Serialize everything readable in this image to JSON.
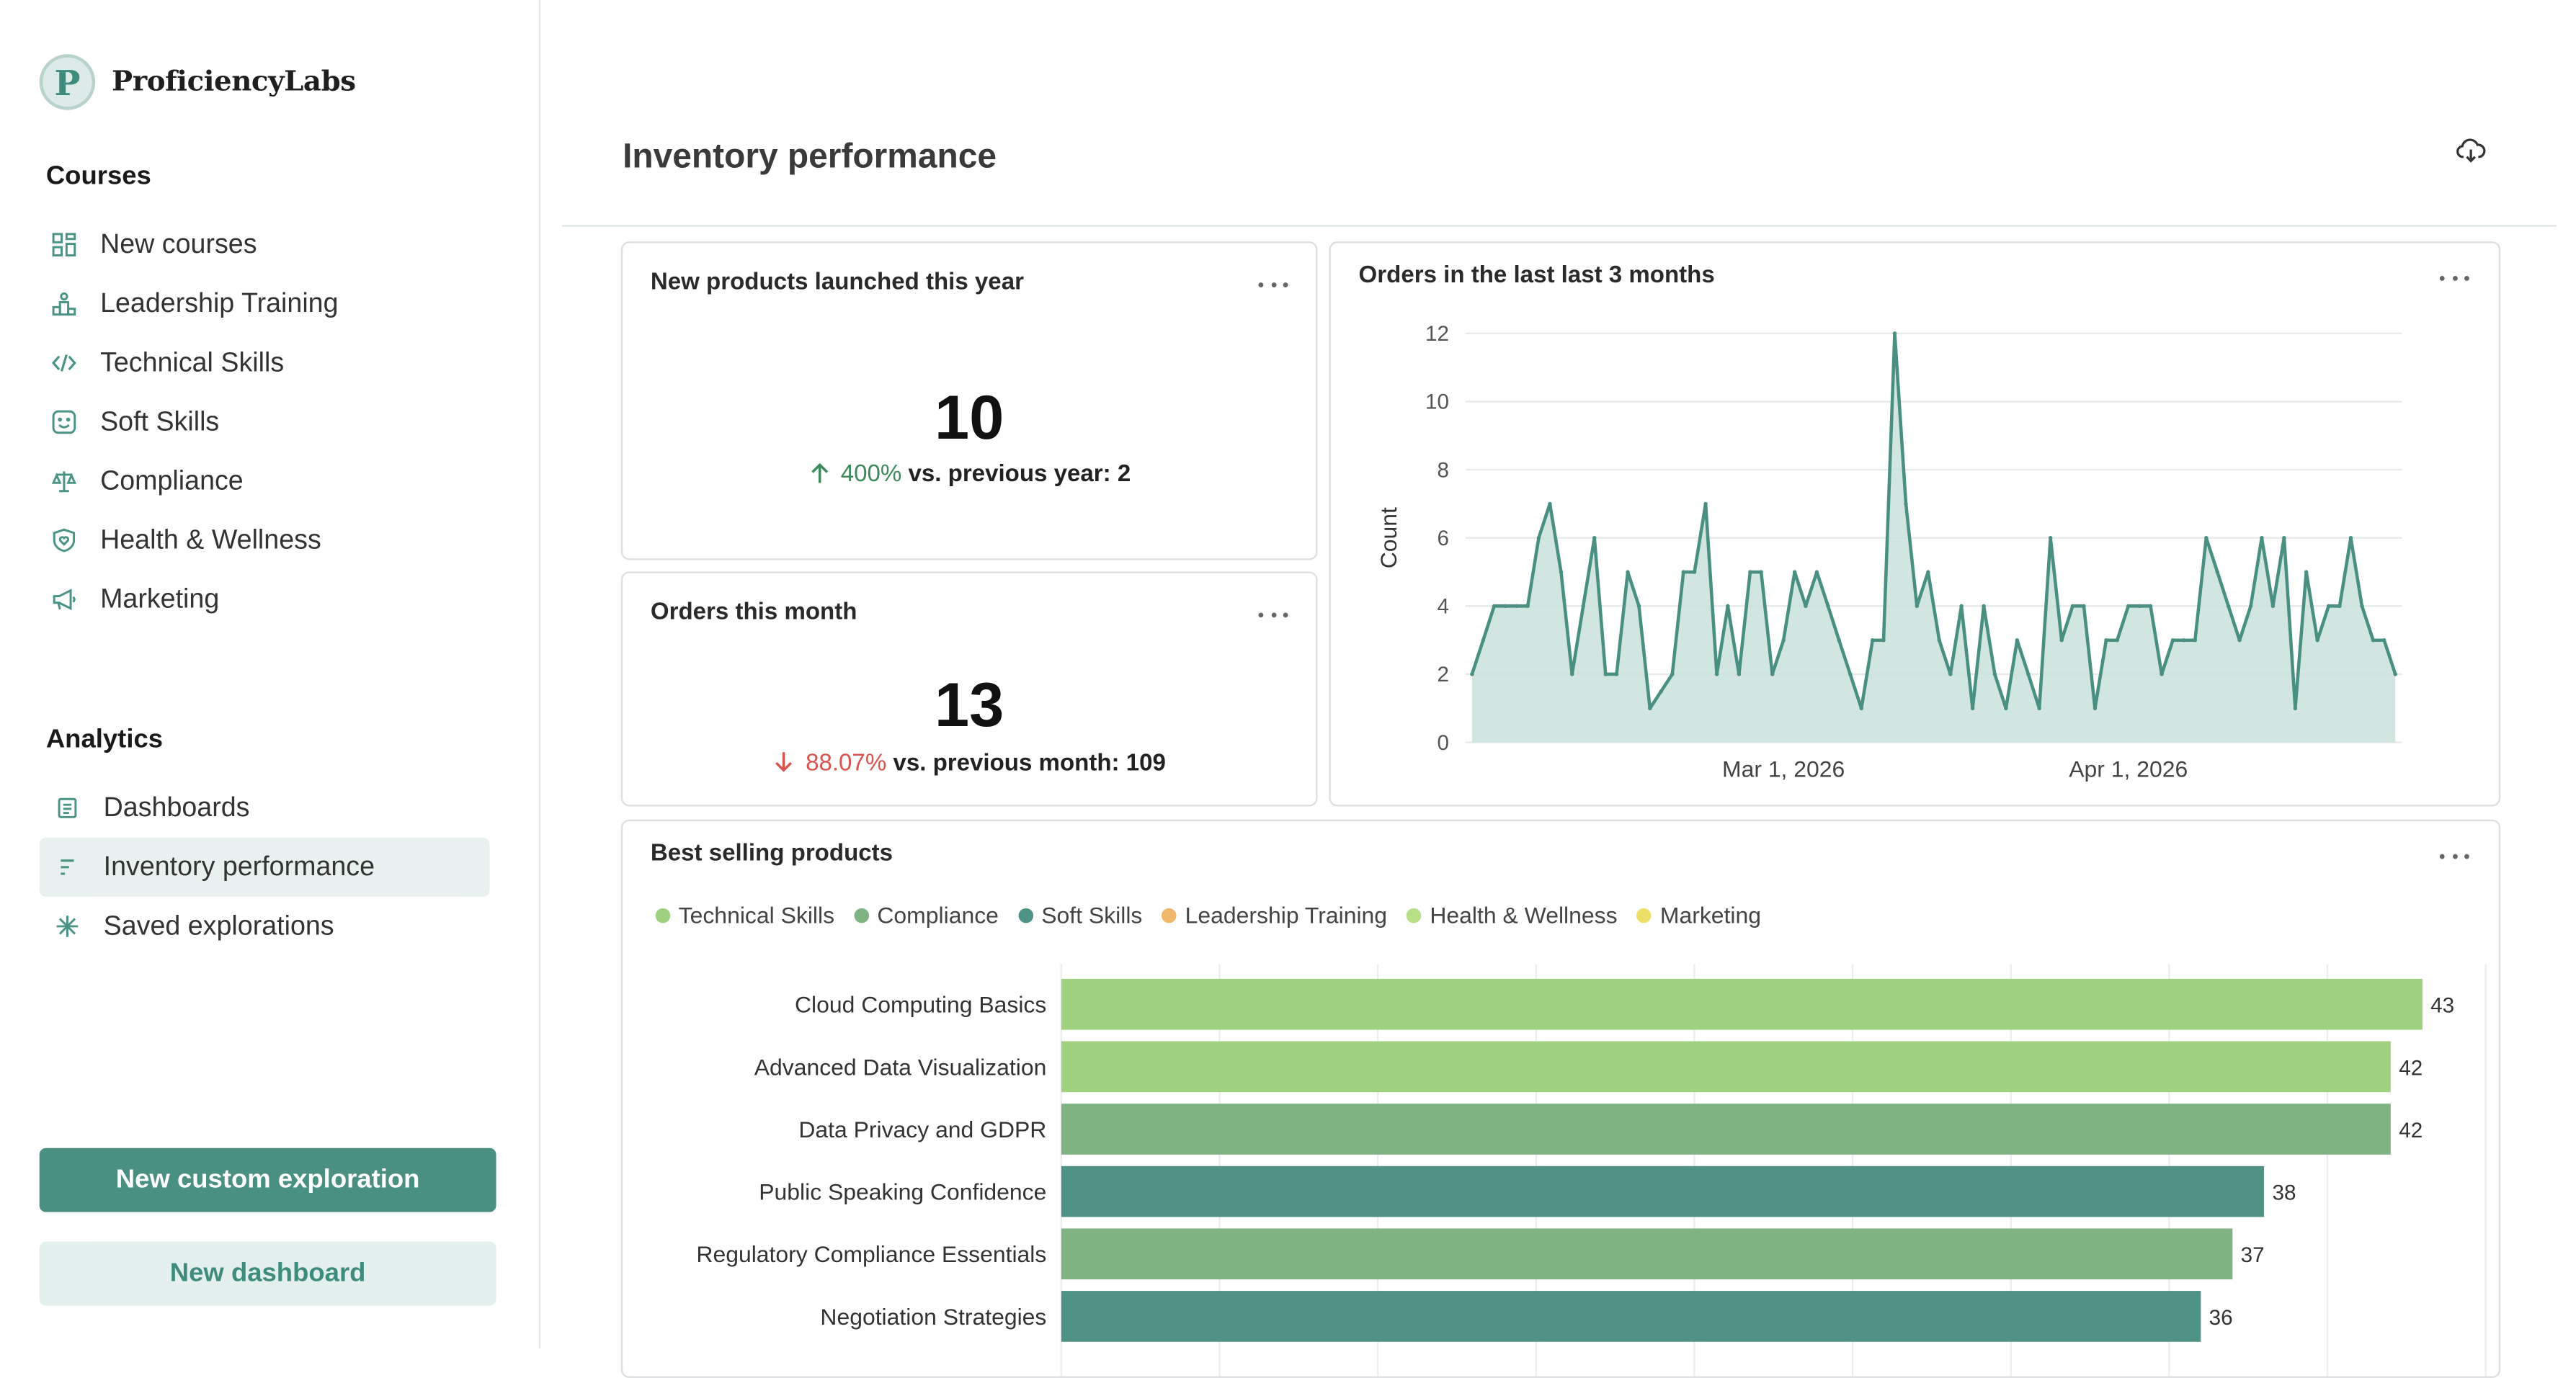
{
  "brand": {
    "logo_letter": "P",
    "name": "ProficiencyLabs"
  },
  "sidebar": {
    "courses_title": "Courses",
    "courses": [
      {
        "label": "New courses",
        "icon": "grid-icon"
      },
      {
        "label": "Leadership Training",
        "icon": "podium-icon"
      },
      {
        "label": "Technical Skills",
        "icon": "code-icon"
      },
      {
        "label": "Soft Skills",
        "icon": "smile-icon"
      },
      {
        "label": "Compliance",
        "icon": "scale-icon"
      },
      {
        "label": "Health & Wellness",
        "icon": "shield-heart-icon"
      },
      {
        "label": "Marketing",
        "icon": "megaphone-icon"
      }
    ],
    "analytics_title": "Analytics",
    "analytics": [
      {
        "label": "Dashboards",
        "icon": "dashboard-icon"
      },
      {
        "label": "Inventory performance",
        "icon": "bars-icon",
        "active": true
      },
      {
        "label": "Saved explorations",
        "icon": "sparkle-icon"
      }
    ],
    "primary_button": "New custom exploration",
    "secondary_button": "New dashboard"
  },
  "page": {
    "title": "Inventory performance",
    "download_icon": "cloud-download-icon"
  },
  "kpi_new_products": {
    "title": "New products launched this year",
    "value": "10",
    "delta": "400%",
    "direction": "up",
    "comparison": "vs. previous year: 2"
  },
  "kpi_orders": {
    "title": "Orders this month",
    "value": "13",
    "delta": "88.07%",
    "direction": "down",
    "comparison": "vs. previous month: 109"
  },
  "colors": {
    "accent": "#4a9082",
    "area_line": "#4a9082",
    "area_fill": "#c9e1dc",
    "up": "#3b8a5a",
    "down": "#d9534f"
  },
  "chart_data": [
    {
      "type": "area",
      "title": "Orders in the last last 3 months",
      "xlabel": "",
      "ylabel": "Count",
      "ylim": [
        0,
        12
      ],
      "yticks": [
        0,
        2,
        4,
        6,
        8,
        10,
        12
      ],
      "xtick_labels": [
        "Mar 1, 2026",
        "Apr 1, 2026"
      ],
      "x_start": "2026-02-01",
      "grid": true,
      "values": [
        2,
        3,
        4,
        4,
        4,
        4,
        6,
        7,
        5,
        2,
        4,
        6,
        2,
        2,
        5,
        4,
        1,
        1.5,
        2,
        5,
        5,
        7,
        2,
        4,
        2,
        5,
        5,
        2,
        3,
        5,
        4,
        5,
        4,
        3,
        2,
        1,
        3,
        3,
        12,
        7,
        4,
        5,
        3,
        2,
        4,
        1,
        4,
        2,
        1,
        3,
        2,
        1,
        6,
        3,
        4,
        4,
        1,
        3,
        3,
        4,
        4,
        4,
        2,
        3,
        3,
        3,
        6,
        5,
        4,
        3,
        4,
        6,
        4,
        6,
        1,
        5,
        3,
        4,
        4,
        6,
        4,
        3,
        3,
        2
      ],
      "line_color": "#4a9082",
      "fill_color": "#c9e1dc"
    },
    {
      "type": "bar",
      "orientation": "horizontal",
      "title": "Best selling products",
      "legend": [
        {
          "name": "Technical Skills",
          "color": "#9fd17f"
        },
        {
          "name": "Compliance",
          "color": "#7fb382"
        },
        {
          "name": "Soft Skills",
          "color": "#4e9385"
        },
        {
          "name": "Leadership Training",
          "color": "#f0b86a"
        },
        {
          "name": "Health & Wellness",
          "color": "#b6df86"
        },
        {
          "name": "Marketing",
          "color": "#ede06a"
        }
      ],
      "legend_position": "top-left",
      "categories": [
        "Cloud Computing Basics",
        "Advanced Data Visualization",
        "Data Privacy and GDPR",
        "Public Speaking Confidence",
        "Regulatory Compliance Essentials",
        "Negotiation Strategies"
      ],
      "values": [
        43,
        42,
        42,
        38,
        37,
        36
      ],
      "series_of_category": [
        "Technical Skills",
        "Technical Skills",
        "Compliance",
        "Soft Skills",
        "Compliance",
        "Soft Skills"
      ],
      "xlim": [
        0,
        45
      ],
      "grid": true
    }
  ]
}
